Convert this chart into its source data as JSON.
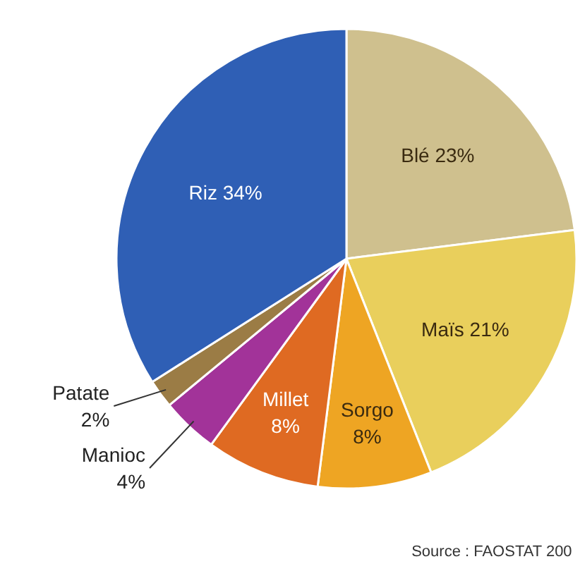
{
  "chart_data": {
    "type": "pie",
    "categories": [
      "Blé",
      "Maïs",
      "Sorgo",
      "Millet",
      "Manioc",
      "Patate",
      "Riz"
    ],
    "values": [
      23,
      21,
      8,
      8,
      4,
      2,
      34
    ],
    "colors": [
      "#cfc08e",
      "#e9cf5c",
      "#eea523",
      "#df6a22",
      "#a23399",
      "#9b7c45",
      "#2f5fb5"
    ],
    "value_labels": [
      "23%",
      "21%",
      "8%",
      "8%",
      "4%",
      "2%",
      "34%"
    ],
    "annotations": [
      "Source : FAOSTAT 200"
    ]
  }
}
